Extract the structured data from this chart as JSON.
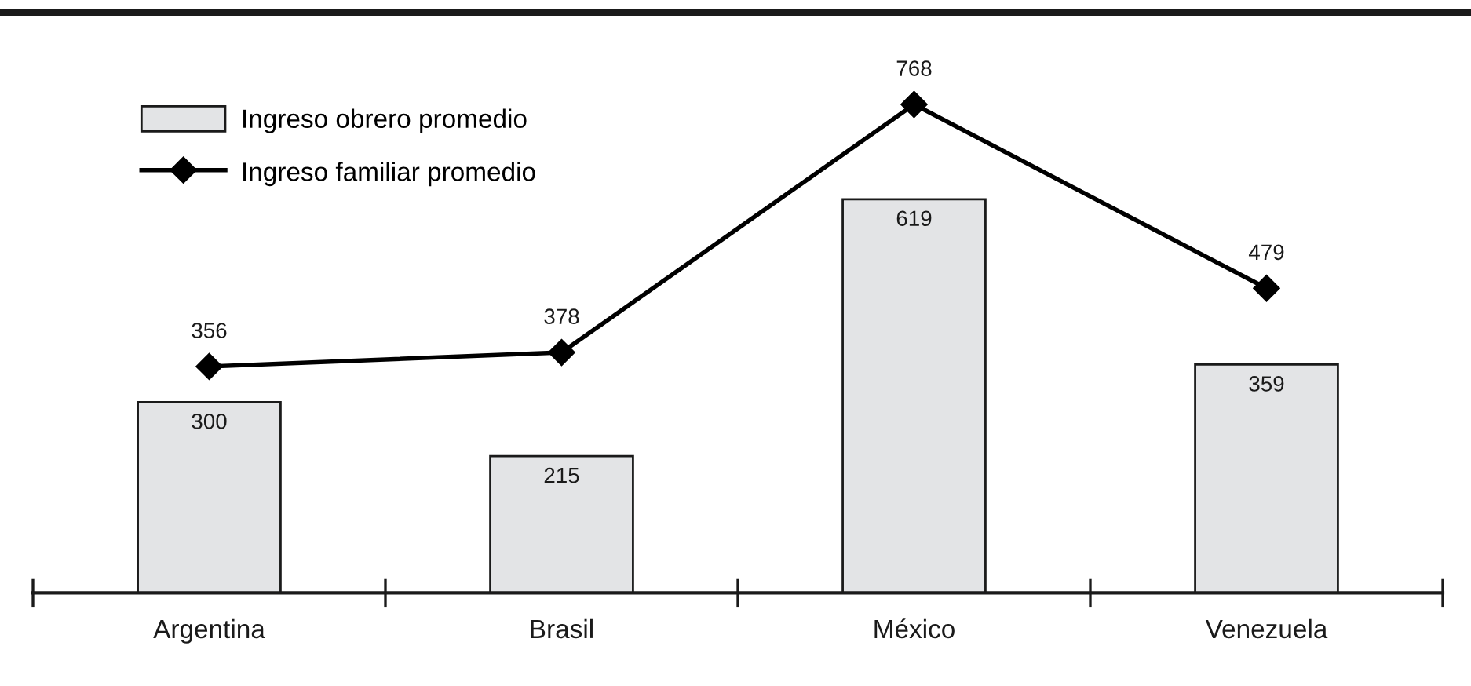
{
  "chart_data": {
    "type": "bar",
    "categories": [
      "Argentina",
      "Brasil",
      "México",
      "Venezuela"
    ],
    "series": [
      {
        "name": "Ingreso obrero promedio",
        "color": "#e3e4e6",
        "values": [
          300,
          215,
          619,
          359
        ]
      },
      {
        "name": "Ingreso familiar promedio",
        "type": "line",
        "color": "#000000",
        "values": [
          356,
          378,
          768,
          479
        ]
      }
    ],
    "data_labels": true,
    "legend": "top left",
    "tick_labels": "x",
    "marker": "diamond",
    "line_style": "solid"
  }
}
